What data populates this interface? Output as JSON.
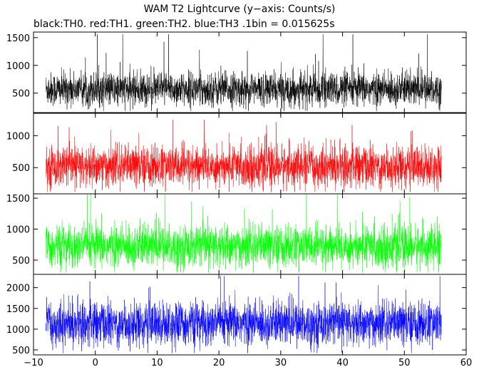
{
  "title": "WAM T2 Lightcurve (y−axis: Counts/s)",
  "subtitle": "black:TH0. red:TH1. green:TH2. blue:TH3 .1bin = 0.015625s",
  "chart_data": {
    "type": "line",
    "x_range": [
      -10,
      60
    ],
    "x_ticks": [
      -10,
      0,
      10,
      20,
      30,
      40,
      50,
      60
    ],
    "x_tick_labels": [
      "−10",
      "0",
      "10",
      "20",
      "30",
      "40",
      "50",
      "60"
    ],
    "data_x_range": [
      -8,
      56
    ],
    "grid": false,
    "panels": [
      {
        "series": "TH0",
        "color": "#000000",
        "ylim": [
          150,
          1600
        ],
        "y_ticks": [
          500,
          1000,
          1500
        ],
        "mean": 570,
        "noise": 150,
        "min": 180,
        "max": 1560
      },
      {
        "series": "TH1",
        "color": "#ff0000",
        "ylim": [
          90,
          1350
        ],
        "y_ticks": [
          500,
          1000
        ],
        "mean": 520,
        "noise": 160,
        "min": 120,
        "max": 1250
      },
      {
        "series": "TH2",
        "color": "#00ff00",
        "ylim": [
          270,
          1570
        ],
        "y_ticks": [
          500,
          1000,
          1500
        ],
        "mean": 720,
        "noise": 170,
        "min": 300,
        "max": 1560
      },
      {
        "series": "TH3",
        "color": "#0000ff",
        "ylim": [
          380,
          2320
        ],
        "y_ticks": [
          500,
          1000,
          1500,
          2000
        ],
        "mean": 1130,
        "noise": 260,
        "min": 420,
        "max": 2280
      }
    ]
  }
}
